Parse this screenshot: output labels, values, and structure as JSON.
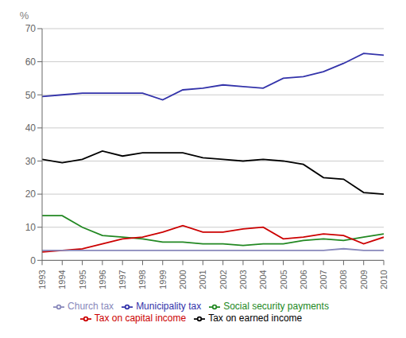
{
  "chart_data": {
    "type": "line",
    "ylabel": "%",
    "x": [
      1993,
      1994,
      1995,
      1996,
      1997,
      1998,
      1999,
      2000,
      2001,
      2002,
      2003,
      2004,
      2005,
      2006,
      2007,
      2008,
      2009,
      2010
    ],
    "xlim": [
      1993,
      2010
    ],
    "xticks": [
      1993,
      1994,
      1995,
      1996,
      1997,
      1998,
      1999,
      2000,
      2001,
      2002,
      2003,
      2004,
      2005,
      2006,
      2007,
      2008,
      2009,
      2010
    ],
    "ylim": [
      0,
      70
    ],
    "yticks": [
      0,
      10,
      20,
      30,
      40,
      50,
      60,
      70
    ],
    "grid": true,
    "legend": "bottom",
    "series": [
      {
        "name": "Municipality tax",
        "color": "#3333aa",
        "values": [
          49.5,
          50.0,
          50.5,
          50.5,
          50.5,
          50.5,
          48.5,
          51.5,
          52.0,
          53.0,
          52.5,
          52.0,
          55.0,
          55.5,
          57.0,
          59.5,
          62.5,
          62.0
        ]
      },
      {
        "name": "Tax on earned income",
        "color": "#000000",
        "values": [
          30.5,
          29.5,
          30.5,
          33.0,
          31.5,
          32.5,
          32.5,
          32.5,
          31.0,
          30.5,
          30.0,
          30.5,
          30.0,
          29.0,
          25.0,
          24.5,
          20.5,
          20.0
        ]
      },
      {
        "name": "Social security payments",
        "color": "#228822",
        "values": [
          13.5,
          13.5,
          10.0,
          7.5,
          7.0,
          6.5,
          5.5,
          5.5,
          5.0,
          5.0,
          4.5,
          5.0,
          5.0,
          6.0,
          6.5,
          6.0,
          7.0,
          8.0
        ]
      },
      {
        "name": "Tax on capital income",
        "color": "#cc0000",
        "values": [
          2.5,
          3.0,
          3.5,
          5.0,
          6.5,
          7.0,
          8.5,
          10.5,
          8.5,
          8.5,
          9.5,
          10.0,
          6.5,
          7.0,
          8.0,
          7.5,
          5.0,
          7.0
        ]
      },
      {
        "name": "Church tax",
        "color": "#8888bb",
        "values": [
          3.0,
          3.0,
          3.0,
          3.0,
          3.0,
          3.0,
          3.0,
          3.0,
          3.0,
          3.0,
          3.0,
          3.0,
          3.0,
          3.0,
          3.0,
          3.5,
          3.0,
          3.0
        ]
      }
    ]
  }
}
